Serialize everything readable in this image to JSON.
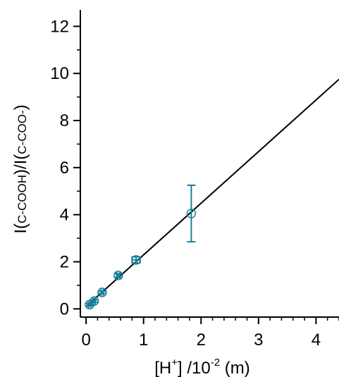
{
  "chart_data": {
    "type": "scatter",
    "title": "",
    "xlabel": {
      "main": "[H",
      "sup1": "+",
      "mid": "] /10",
      "sup2": "-2",
      "end": " (m)"
    },
    "ylabel": {
      "p1": "I(",
      "p2": "C-COOH",
      "p3": ")/I(",
      "p4": "C-COO-",
      "p5": ")"
    },
    "xlim": [
      -0.1,
      4.4
    ],
    "ylim": [
      -0.35,
      12.7
    ],
    "xticks": [
      "0",
      "1",
      "2",
      "3",
      "4"
    ],
    "yticks": [
      "0",
      "2",
      "4",
      "6",
      "8",
      "10",
      "12"
    ],
    "grid": false,
    "colors": {
      "marker": "#1a7f9a",
      "fit_line": "#000000",
      "axis": "#000000"
    },
    "series": [
      {
        "type": "scatter",
        "x": [
          0.06,
          0.14,
          0.28,
          0.56,
          0.87,
          1.83
        ],
        "y": [
          0.18,
          0.33,
          0.7,
          1.42,
          2.08,
          4.05
        ],
        "yerr": [
          0.05,
          0.05,
          0.05,
          0.08,
          0.13,
          1.2
        ],
        "xerr": [
          0.02,
          0.02,
          0.02,
          0.03,
          0.07,
          0.0
        ]
      },
      {
        "type": "line",
        "x": [
          0.0,
          4.4
        ],
        "y": [
          0.1,
          9.75
        ]
      }
    ]
  }
}
